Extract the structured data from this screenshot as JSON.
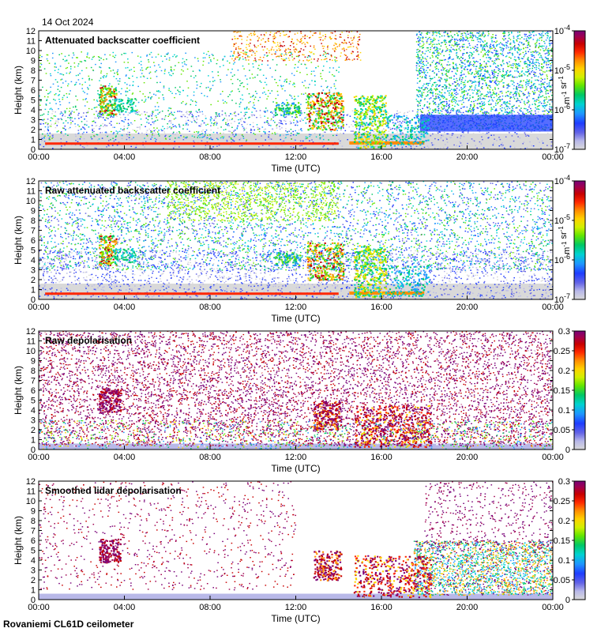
{
  "date": "14 Oct 2024",
  "footer": "Rovaniemi CL61D ceilometer",
  "colormap": [
    "#d9d9d9",
    "#b8b8e8",
    "#6464e6",
    "#1e3cff",
    "#1e96ff",
    "#00d2d2",
    "#00c864",
    "#64e600",
    "#d2f000",
    "#ffd200",
    "#ff8c00",
    "#ff2800",
    "#c80000",
    "#a00050",
    "#780078"
  ],
  "chart_data": [
    {
      "type": "heatmap",
      "title": "Attenuated backscatter coefficient",
      "xlabel": "Time (UTC)",
      "ylabel": "Height (km)",
      "x_ticks": [
        "00:00",
        "04:00",
        "08:00",
        "12:00",
        "16:00",
        "20:00",
        "00:00"
      ],
      "y_ticks": [
        "0",
        "1",
        "2",
        "3",
        "4",
        "5",
        "6",
        "7",
        "8",
        "9",
        "10",
        "11",
        "12"
      ],
      "ylim": [
        0,
        12
      ],
      "colorbar": {
        "scale": "log",
        "range": [
          1e-07,
          0.0001
        ],
        "tick_labels": [
          "10^-7",
          "10^-6",
          "10^-5",
          "10^-4"
        ],
        "label": "m-1 sr-1"
      }
    },
    {
      "type": "heatmap",
      "title": "Raw attenuated backscatter coefficient",
      "xlabel": "Time (UTC)",
      "ylabel": "Height (km)",
      "x_ticks": [
        "00:00",
        "04:00",
        "08:00",
        "12:00",
        "16:00",
        "20:00",
        "00:00"
      ],
      "y_ticks": [
        "0",
        "1",
        "2",
        "3",
        "4",
        "5",
        "6",
        "7",
        "8",
        "9",
        "10",
        "11",
        "12"
      ],
      "ylim": [
        0,
        12
      ],
      "colorbar": {
        "scale": "log",
        "range": [
          1e-07,
          0.0001
        ],
        "tick_labels": [
          "10^-7",
          "10^-6",
          "10^-5",
          "10^-4"
        ],
        "label": "m-1 sr-1"
      }
    },
    {
      "type": "heatmap",
      "title": "Raw depolarisation",
      "xlabel": "Time (UTC)",
      "ylabel": "Height (km)",
      "x_ticks": [
        "00:00",
        "04:00",
        "08:00",
        "12:00",
        "16:00",
        "20:00",
        "00:00"
      ],
      "y_ticks": [
        "0",
        "1",
        "2",
        "3",
        "4",
        "5",
        "6",
        "7",
        "8",
        "9",
        "10",
        "11",
        "12"
      ],
      "ylim": [
        0,
        12
      ],
      "colorbar": {
        "scale": "linear",
        "range": [
          0,
          0.3
        ],
        "tick_labels": [
          "0",
          "0.05",
          "0.1",
          "0.15",
          "0.2",
          "0.25",
          "0.3"
        ]
      }
    },
    {
      "type": "heatmap",
      "title": "Smoothed lidar depolarisation",
      "xlabel": "Time (UTC)",
      "ylabel": "Height (km)",
      "x_ticks": [
        "00:00",
        "04:00",
        "08:00",
        "12:00",
        "16:00",
        "20:00",
        "00:00"
      ],
      "y_ticks": [
        "0",
        "1",
        "2",
        "3",
        "4",
        "5",
        "6",
        "7",
        "8",
        "9",
        "10",
        "11",
        "12"
      ],
      "ylim": [
        0,
        12
      ],
      "colorbar": {
        "scale": "linear",
        "range": [
          0,
          0.3
        ],
        "tick_labels": [
          "0",
          "0.05",
          "0.1",
          "0.15",
          "0.2",
          "0.25",
          "0.3"
        ]
      }
    }
  ]
}
